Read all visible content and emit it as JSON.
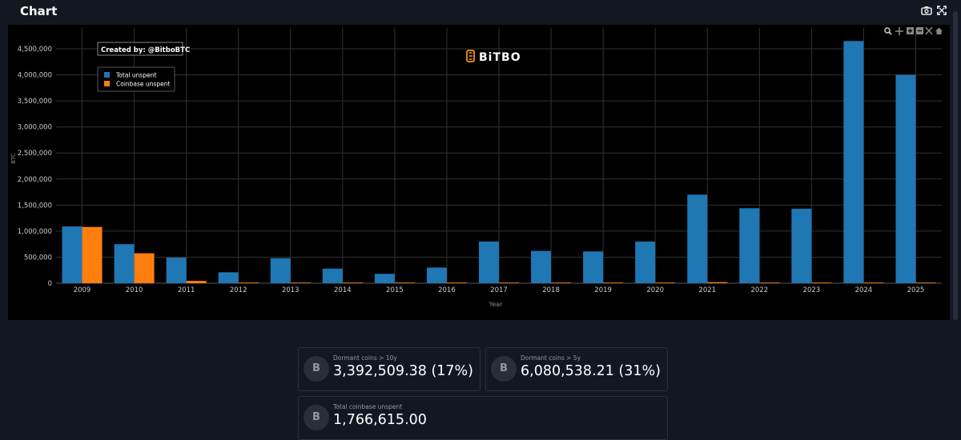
{
  "header": {
    "title": "Chart",
    "camera_icon": "camera-icon",
    "expand_icon": "expand-icon"
  },
  "chart_data": {
    "type": "bar",
    "categories": [
      "2009",
      "2010",
      "2011",
      "2012",
      "2013",
      "2014",
      "2015",
      "2016",
      "2017",
      "2018",
      "2019",
      "2020",
      "2021",
      "2022",
      "2023",
      "2024",
      "2025"
    ],
    "series": [
      {
        "name": "Total unspent",
        "color": "#1f77b4",
        "values": [
          1090000,
          750000,
          490000,
          210000,
          480000,
          280000,
          180000,
          300000,
          800000,
          620000,
          610000,
          800000,
          1700000,
          1440000,
          1430000,
          4650000,
          4000000
        ]
      },
      {
        "name": "Coinbase unspent",
        "color": "#ff7f0e",
        "values": [
          1080000,
          575000,
          45000,
          12000,
          5000,
          3000,
          2000,
          2000,
          2000,
          2000,
          2000,
          3000,
          20000,
          3000,
          9000,
          3000,
          2000
        ]
      }
    ],
    "xlabel": "Year",
    "ylabel": "BTC",
    "ylim": [
      0,
      4900000
    ],
    "yticks": [
      0,
      500000,
      1000000,
      1500000,
      2000000,
      2500000,
      3000000,
      3500000,
      4000000,
      4500000
    ],
    "ytick_labels": [
      "0",
      "500,000",
      "1,000,000",
      "1,500,000",
      "2,000,000",
      "2,500,000",
      "3,000,000",
      "3,500,000",
      "4,000,000",
      "4,500,000"
    ],
    "grid": true,
    "legend": "top-left",
    "annotation": "Created by: @BitboBTC",
    "watermark": "BiTBO"
  },
  "stats": {
    "dormant10": {
      "label": "Dormant coins > 10y",
      "value": "3,392,509.38 (17%)"
    },
    "dormant5": {
      "label": "Dormant coins > 5y",
      "value": "6,080,538.21 (31%)"
    },
    "coinbase": {
      "label": "Total coinbase unspent",
      "value": "1,766,615.00"
    },
    "coin_symbol": "B"
  }
}
